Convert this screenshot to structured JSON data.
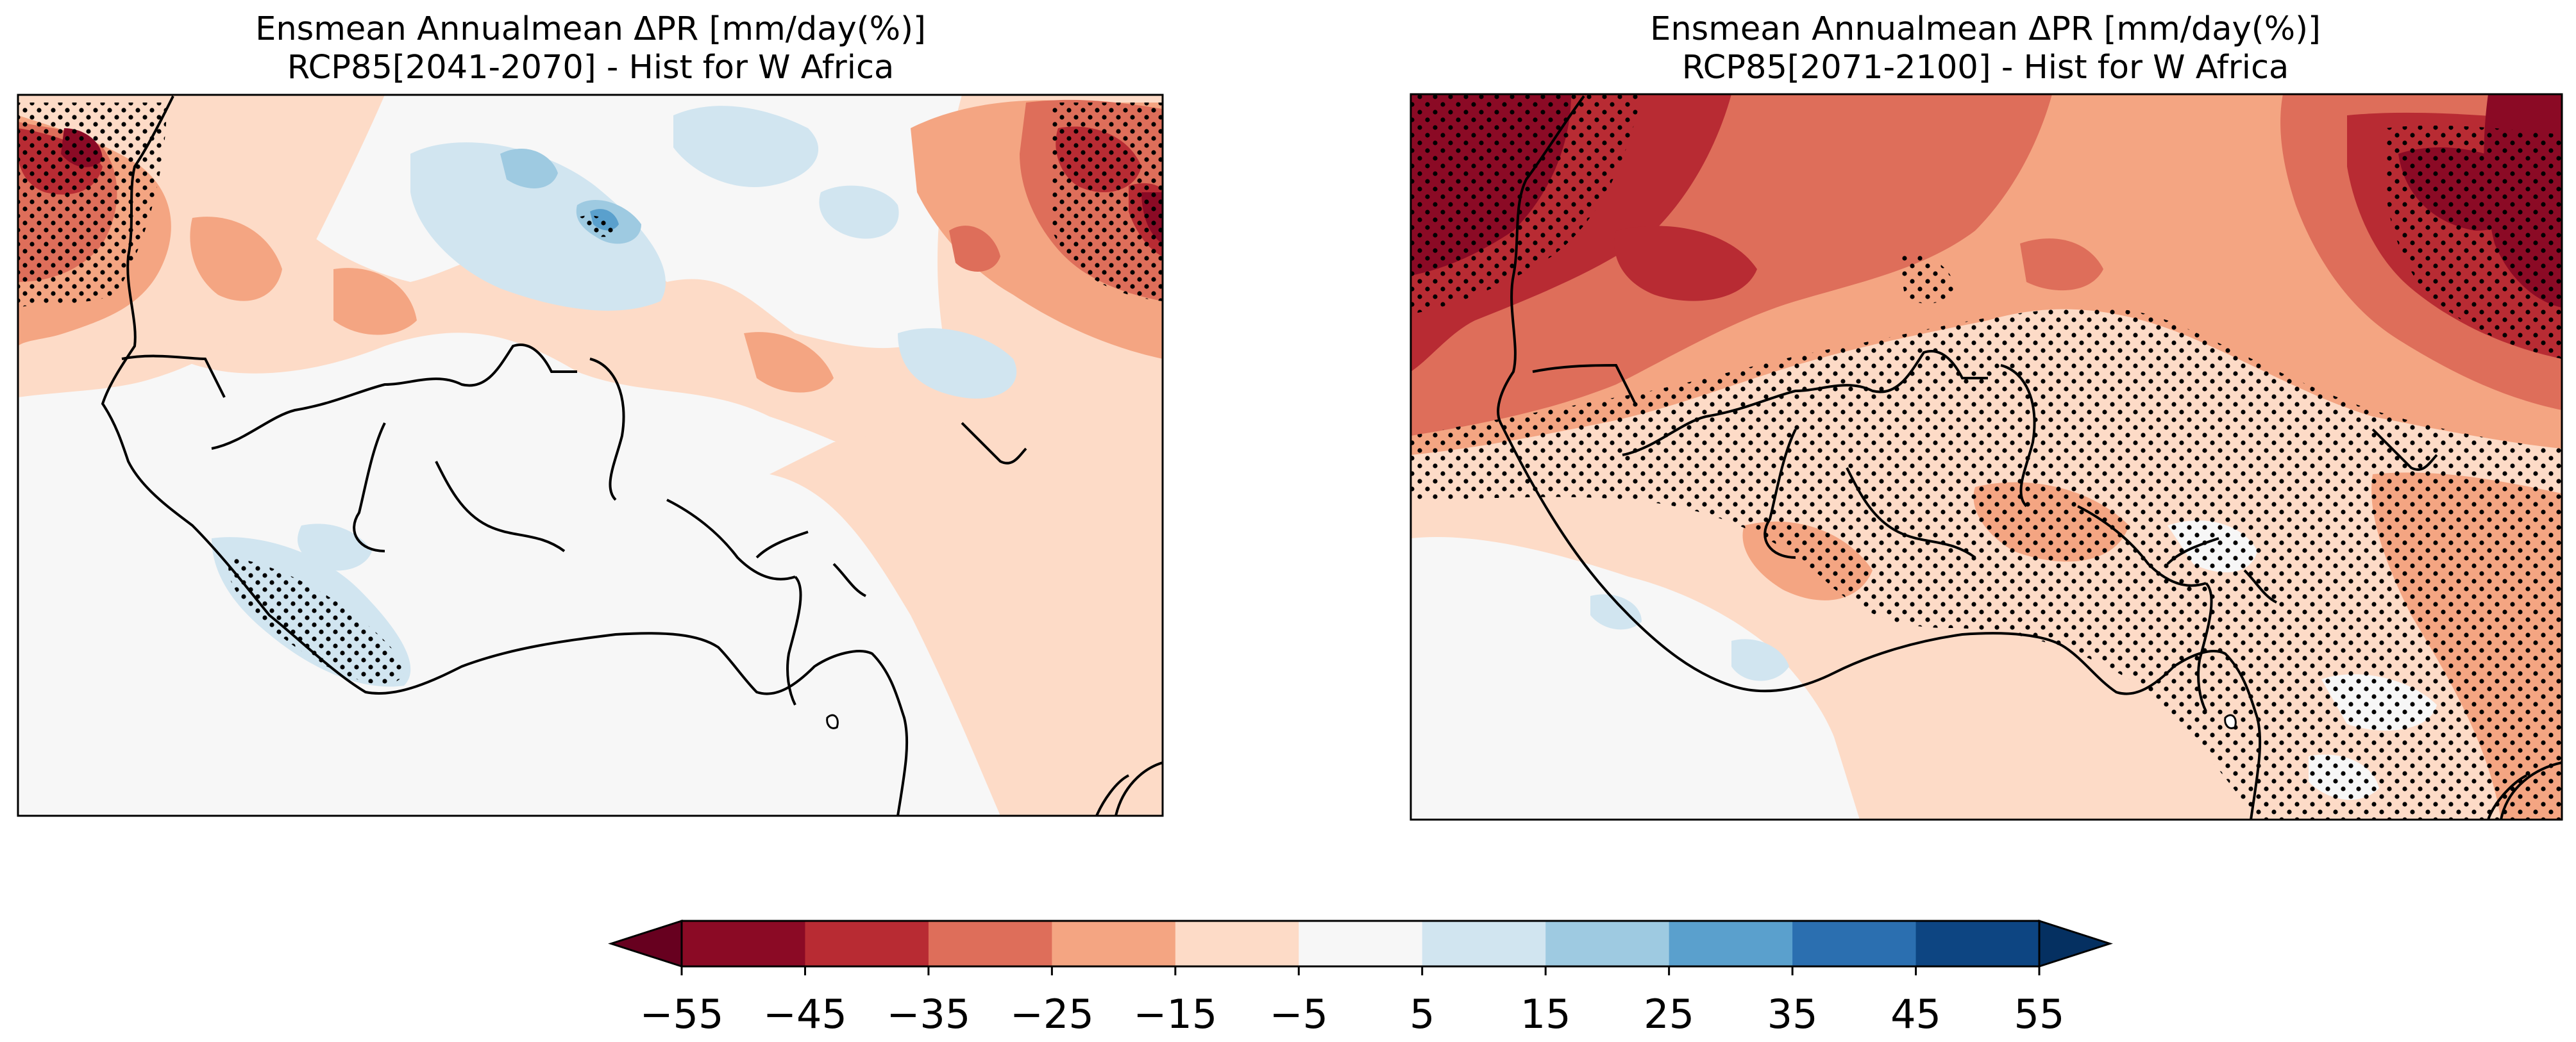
{
  "figure": {
    "panels": [
      {
        "title_line1": "Ensmean  Annualmean ΔPR [mm/day(%)]",
        "title_line2": "RCP85[2041-2070] - Hist for W Africa",
        "region": "W Africa",
        "period": "2041-2070",
        "stippling": "sparse: NW coastal dry zone, NE corner, small SW coastal patch"
      },
      {
        "title_line1": "Ensmean  Annualmean ΔPR [mm/day(%)]",
        "title_line2": "RCP85[2071-2100] - Hist for W Africa",
        "region": "W Africa",
        "period": "2071-2100",
        "stippling": "widespread: northwest, northeast and most of southern band"
      }
    ],
    "colorbar": {
      "ticks": [
        "−55",
        "−45",
        "−35",
        "−25",
        "−15",
        "−5",
        "5",
        "15",
        "25",
        "35",
        "45",
        "55"
      ],
      "tick_values": [
        -55,
        -45,
        -35,
        -25,
        -15,
        -5,
        5,
        15,
        25,
        35,
        45,
        55
      ],
      "colors": [
        "#67001f",
        "#8b0a25",
        "#b82b33",
        "#de6e5a",
        "#f4a582",
        "#fddbc7",
        "#f7f7f7",
        "#d1e5f0",
        "#9ecae1",
        "#5aa0cd",
        "#2b6fb0",
        "#0d4582",
        "#053061"
      ],
      "extend": "both"
    }
  }
}
